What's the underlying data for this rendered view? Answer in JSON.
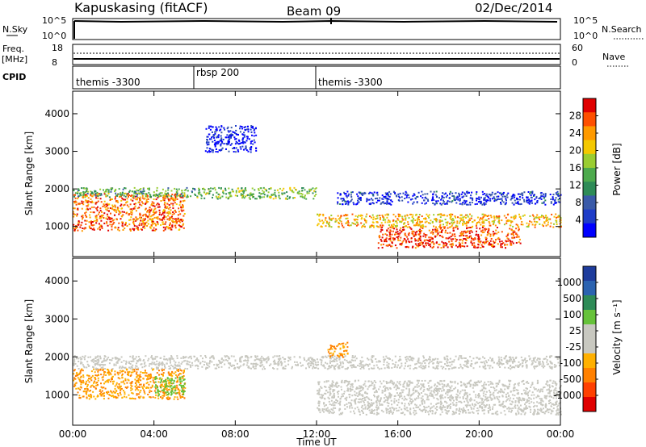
{
  "header": {
    "station": "Kapuskasing (fitACF)",
    "beam": "Beam 09",
    "date": "02/Dec/2014"
  },
  "nsky_panel": {
    "left_label": "N.Sky",
    "left_ticks": [
      "10^5",
      "10^0"
    ],
    "right_ticks": [
      "10^5",
      "10^0"
    ],
    "right_label": "N.Search"
  },
  "freq_panel": {
    "left_label_1": "Freq.",
    "left_label_2": "[MHz]",
    "left_ticks": [
      "18",
      "8"
    ],
    "right_ticks": [
      "60",
      "0"
    ],
    "right_label": "Nave"
  },
  "cpid_panel": {
    "label": "CPID",
    "segments": [
      {
        "label": "themis -3300",
        "start_hour": 0,
        "end_hour": 6
      },
      {
        "label": "rbsp 200",
        "start_hour": 6,
        "end_hour": 12
      },
      {
        "label": "themis -3300",
        "start_hour": 12,
        "end_hour": 24
      }
    ]
  },
  "power_colorbar": {
    "label": "Power [dB]",
    "tick_labels": [
      "28",
      "24",
      "20",
      "16",
      "12",
      "8",
      "4"
    ],
    "colors": [
      "#e00000",
      "#ff5000",
      "#ff9a00",
      "#f4c800",
      "#9acd32",
      "#4daa4d",
      "#2e8b57",
      "#3a5aa8",
      "#1e3cc8",
      "#0000ff"
    ]
  },
  "velocity_colorbar": {
    "label": "Velocity [m s⁻¹]",
    "tick_labels": [
      "1000",
      "500",
      "100",
      "25",
      "-25",
      "-100",
      "-500",
      "-1000"
    ],
    "colors": [
      "#1e3c9c",
      "#2b63b0",
      "#2e8b57",
      "#66c23a",
      "#c8c8c0",
      "#c8c8c0",
      "#ffb000",
      "#ff8000",
      "#ff4000",
      "#e00000"
    ]
  },
  "chart_data": {
    "type": "heatmap",
    "xlabel": "Time UT",
    "ylabel": "Slant Range [km]",
    "x_tick_labels": [
      "00:00",
      "04:00",
      "08:00",
      "12:00",
      "16:00",
      "20:00",
      "00:00"
    ],
    "y_tick_labels": [
      "1000",
      "2000",
      "3000",
      "4000"
    ],
    "xlim": [
      0,
      24
    ],
    "ylim": [
      200,
      4600
    ],
    "power_scatter_bands": [
      {
        "t_start": 0,
        "t_end": 5.5,
        "r_min": 900,
        "r_max": 1900,
        "power": 26
      },
      {
        "t_start": 0,
        "t_end": 6,
        "r_min": 1800,
        "r_max": 2050,
        "power": 14
      },
      {
        "t_start": 6,
        "t_end": 12,
        "r_min": 1750,
        "r_max": 2050,
        "power": 16
      },
      {
        "t_start": 12,
        "t_end": 24,
        "r_min": 1000,
        "r_max": 1350,
        "power": 22
      },
      {
        "t_start": 15,
        "t_end": 22,
        "r_min": 450,
        "r_max": 1000,
        "power": 28
      },
      {
        "t_start": 6.5,
        "t_end": 9,
        "r_min": 3000,
        "r_max": 3700,
        "power": 4
      },
      {
        "t_start": 13,
        "t_end": 24,
        "r_min": 1600,
        "r_max": 1950,
        "power": 6
      }
    ],
    "velocity_scatter_bands": [
      {
        "t_start": 0,
        "t_end": 5.5,
        "r_min": 900,
        "r_max": 1700,
        "velocity": -100
      },
      {
        "t_start": 0,
        "t_end": 24,
        "r_min": 1700,
        "r_max": 2050,
        "velocity": 0
      },
      {
        "t_start": 12,
        "t_end": 24,
        "r_min": 500,
        "r_max": 1400,
        "velocity": 0
      },
      {
        "t_start": 4,
        "t_end": 5.5,
        "r_min": 1000,
        "r_max": 1500,
        "velocity": 50
      },
      {
        "t_start": 12.5,
        "t_end": 13.5,
        "r_min": 2000,
        "r_max": 2400,
        "velocity": -100
      }
    ]
  }
}
